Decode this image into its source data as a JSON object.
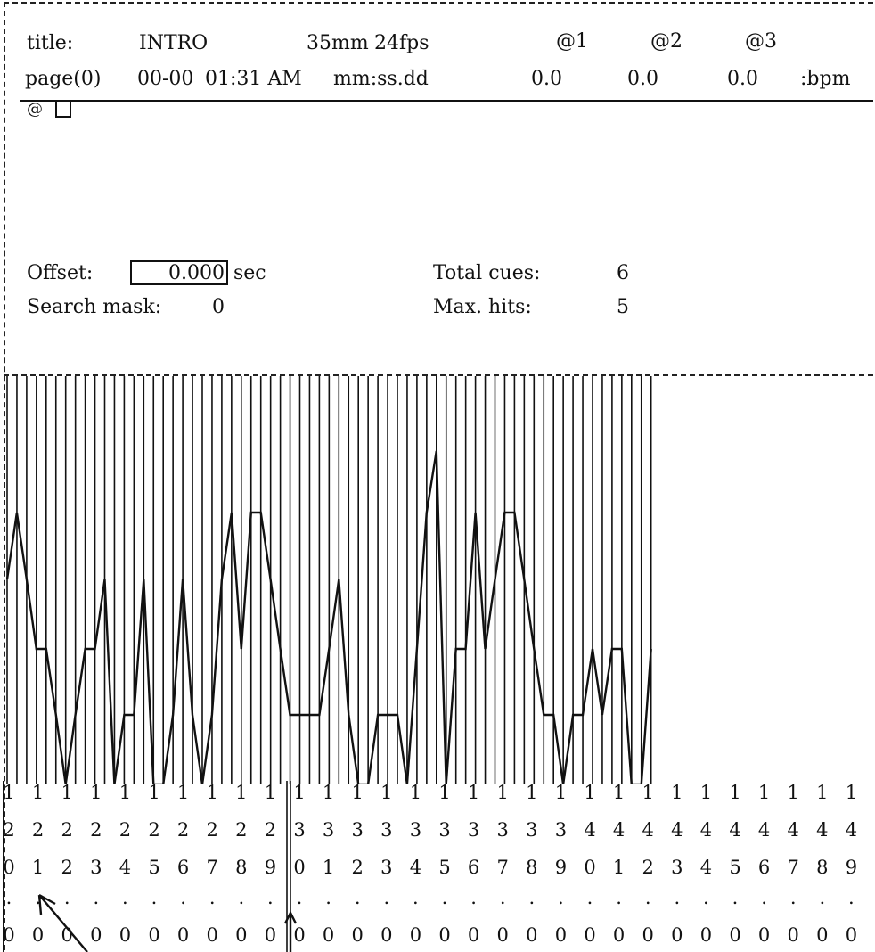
{
  "header": {
    "title_label": "title:",
    "title_value": "INTRO",
    "film_format": "35mm",
    "frame_rate": "24fps",
    "at1_label": "@1",
    "at2_label": "@2",
    "at3_label": "@3",
    "page_label": "page(0)",
    "date": "00-00",
    "time": "01:31 AM",
    "time_format": "mm:ss.dd",
    "at1_value": "0.0",
    "at2_value": "0.0",
    "at3_value": "0.0",
    "bpm_label": ":bpm",
    "command_prompt": "@"
  },
  "info": {
    "offset_label": "Offset:",
    "offset_value": "0.000",
    "offset_unit": "sec",
    "search_mask_label": "Search mask:",
    "search_mask_value": "0",
    "total_cues_label": "Total cues:",
    "total_cues_value": "6",
    "max_hits_label": "Max. hits:",
    "max_hits_value": "5"
  },
  "timeline": {
    "start_frame": 120,
    "end_frame": 150,
    "digit_rows": [
      "hundreds",
      "tens",
      "units",
      "dot",
      "decimal"
    ],
    "amplitude_levels_per_tick": [
      3,
      4,
      3,
      2,
      2,
      1,
      0,
      1,
      2,
      2,
      3,
      0,
      1,
      1,
      3,
      0,
      0,
      1,
      3,
      1,
      0,
      1,
      3,
      4,
      2,
      4,
      4,
      3,
      2,
      1,
      1,
      1,
      1,
      2,
      3,
      1,
      0,
      0,
      1,
      1,
      1,
      0,
      2,
      4,
      5,
      0,
      2,
      2,
      4,
      2,
      3,
      4,
      4,
      3,
      2,
      1,
      1,
      0,
      1,
      1,
      2,
      1,
      2,
      2,
      0,
      0,
      2
    ]
  }
}
